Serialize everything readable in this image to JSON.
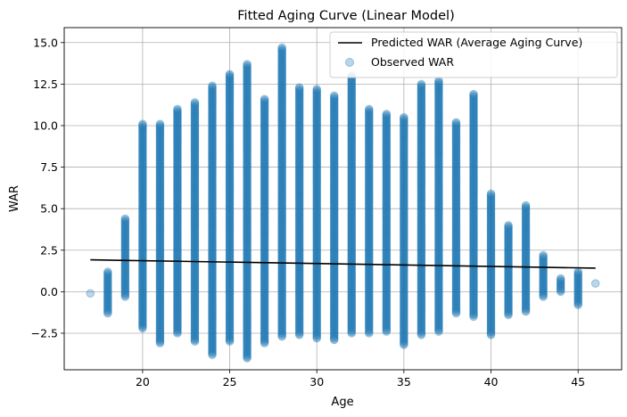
{
  "chart_data": {
    "type": "scatter",
    "title": "Fitted Aging Curve (Linear Model)",
    "xlabel": "Age",
    "ylabel": "WAR",
    "xlim": [
      15.5,
      47.5
    ],
    "ylim": [
      -4.7,
      15.9
    ],
    "xticks": [
      20,
      25,
      30,
      35,
      40,
      45
    ],
    "yticks": [
      -2.5,
      0.0,
      2.5,
      5.0,
      7.5,
      10.0,
      12.5,
      15.0
    ],
    "ytick_labels": [
      "−2.5",
      "0.0",
      "2.5",
      "5.0",
      "7.5",
      "10.0",
      "12.5",
      "15.0"
    ],
    "grid": true,
    "legend_position": "top-right",
    "series": [
      {
        "name": "Predicted WAR (Average Aging Curve)",
        "kind": "line",
        "color": "#000000",
        "x": [
          17,
          46
        ],
        "y": [
          1.92,
          1.42
        ]
      },
      {
        "name": "Observed WAR",
        "kind": "scatter",
        "color": "#1f77b4",
        "ranges": [
          {
            "age": 17,
            "min": -0.1,
            "max": -0.1
          },
          {
            "age": 18,
            "min": -1.3,
            "max": 1.2
          },
          {
            "age": 19,
            "min": -0.3,
            "max": 4.4
          },
          {
            "age": 20,
            "min": -2.2,
            "max": 10.1
          },
          {
            "age": 21,
            "min": -3.1,
            "max": 10.1
          },
          {
            "age": 22,
            "min": -2.5,
            "max": 11.0
          },
          {
            "age": 23,
            "min": -3.0,
            "max": 11.4
          },
          {
            "age": 24,
            "min": -3.8,
            "max": 12.4
          },
          {
            "age": 25,
            "min": -3.0,
            "max": 13.1
          },
          {
            "age": 26,
            "min": -4.0,
            "max": 13.7
          },
          {
            "age": 27,
            "min": -3.1,
            "max": 11.6
          },
          {
            "age": 28,
            "min": -2.7,
            "max": 14.7
          },
          {
            "age": 29,
            "min": -2.6,
            "max": 12.3
          },
          {
            "age": 30,
            "min": -2.8,
            "max": 12.2
          },
          {
            "age": 31,
            "min": -2.9,
            "max": 11.8
          },
          {
            "age": 32,
            "min": -2.5,
            "max": 13.0
          },
          {
            "age": 33,
            "min": -2.5,
            "max": 11.0
          },
          {
            "age": 34,
            "min": -2.4,
            "max": 10.7
          },
          {
            "age": 35,
            "min": -3.2,
            "max": 10.5
          },
          {
            "age": 36,
            "min": -2.6,
            "max": 12.5
          },
          {
            "age": 37,
            "min": -2.4,
            "max": 12.7
          },
          {
            "age": 38,
            "min": -1.3,
            "max": 10.2
          },
          {
            "age": 39,
            "min": -1.5,
            "max": 11.9
          },
          {
            "age": 40,
            "min": -2.6,
            "max": 5.9
          },
          {
            "age": 41,
            "min": -1.4,
            "max": 4.0
          },
          {
            "age": 42,
            "min": -1.2,
            "max": 5.2
          },
          {
            "age": 43,
            "min": -0.3,
            "max": 2.2
          },
          {
            "age": 44,
            "min": 0.0,
            "max": 0.8
          },
          {
            "age": 45,
            "min": -0.8,
            "max": 1.2
          },
          {
            "age": 46,
            "min": 0.5,
            "max": 0.5
          }
        ]
      }
    ]
  }
}
